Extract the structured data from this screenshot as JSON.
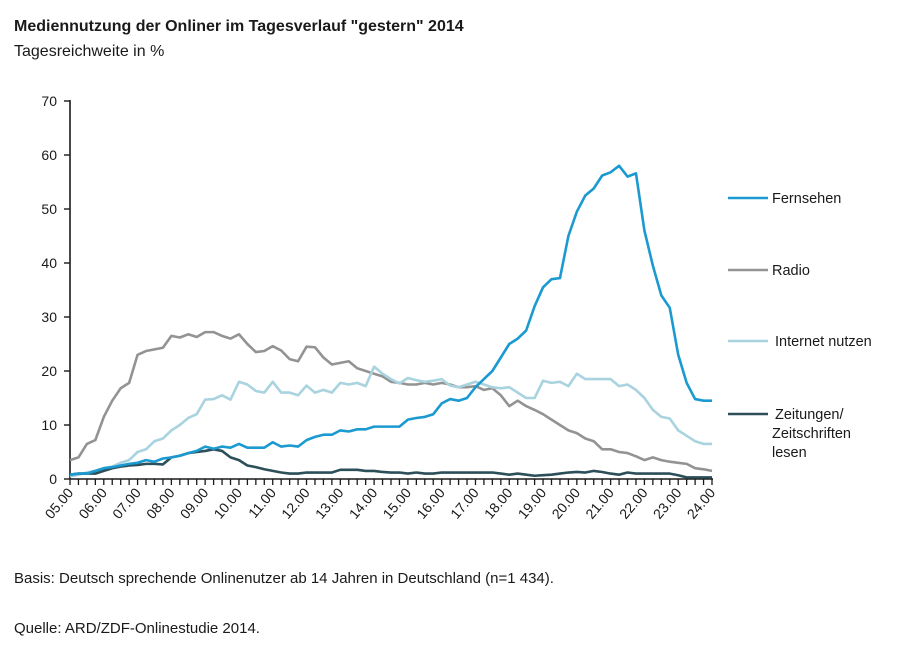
{
  "header": {
    "title": "Mediennutzung der Onliner im Tagesverlauf \"gestern\" 2014",
    "subtitle": "Tagesreichweite in %"
  },
  "footer": {
    "basis": "Basis: Deutsch sprechende Onlinenutzer ab 14 Jahren in Deutschland (n=1 434).",
    "source": "Quelle: ARD/ZDF-Onlinestudie 2014."
  },
  "chart_data": {
    "type": "line",
    "title": "Mediennutzung der Onliner im Tagesverlauf \"gestern\" 2014",
    "subtitle": "Tagesreichweite in %",
    "xlabel": "",
    "ylabel": "Tagesreichweite in %",
    "ylim": [
      0,
      70
    ],
    "yticks": [
      0,
      10,
      20,
      30,
      40,
      50,
      60,
      70
    ],
    "xlim": [
      5,
      24
    ],
    "xstep_hours": 0.25,
    "xtick_labels": [
      "05.00",
      "06.00",
      "07.00",
      "08.00",
      "09.00",
      "10.00",
      "11.00",
      "12.00",
      "13.00",
      "14.00",
      "15.00",
      "16.00",
      "17.00",
      "18.00",
      "19.00",
      "20.00",
      "21.00",
      "22.00",
      "23.00",
      "24.00"
    ],
    "grid": false,
    "legend_position": "right",
    "series": [
      {
        "name": "Fernsehen",
        "legend": [
          "Fernsehen"
        ],
        "color": "#1a9ad0",
        "values": [
          0.8,
          1.0,
          1.0,
          1.5,
          2.0,
          2.2,
          2.5,
          2.8,
          3.0,
          3.5,
          3.2,
          3.8,
          4.0,
          4.3,
          4.8,
          5.2,
          6.0,
          5.6,
          6.0,
          5.8,
          6.5,
          5.8,
          5.8,
          5.8,
          6.8,
          6.0,
          6.2,
          6.0,
          7.2,
          7.8,
          8.2,
          8.2,
          9.0,
          8.8,
          9.2,
          9.2,
          9.7,
          9.7,
          9.7,
          9.7,
          11.0,
          11.3,
          11.5,
          12.0,
          14.0,
          14.8,
          14.5,
          15.0,
          17.0,
          18.5,
          20.0,
          22.5,
          25.0,
          26.0,
          27.5,
          32.0,
          35.5,
          37.0,
          37.2,
          45.0,
          49.5,
          52.5,
          53.8,
          56.2,
          56.8,
          58.0,
          56.0,
          56.6,
          46.0,
          39.5,
          34.0,
          31.7,
          23.0,
          17.8,
          14.8,
          14.5,
          14.5
        ]
      },
      {
        "name": "Radio",
        "legend": [
          "Radio"
        ],
        "color": "#939393",
        "values": [
          3.5,
          4.0,
          6.5,
          7.2,
          11.5,
          14.5,
          16.8,
          17.8,
          23.0,
          23.7,
          24.0,
          24.3,
          26.5,
          26.2,
          26.8,
          26.3,
          27.2,
          27.2,
          26.5,
          26.0,
          26.8,
          25.0,
          23.5,
          23.7,
          24.6,
          23.8,
          22.2,
          21.8,
          24.5,
          24.4,
          22.5,
          21.2,
          21.5,
          21.8,
          20.5,
          20.0,
          19.5,
          19.0,
          18.0,
          17.8,
          17.5,
          17.5,
          17.8,
          17.5,
          17.8,
          17.5,
          17.0,
          17.0,
          17.2,
          16.5,
          16.8,
          15.5,
          13.5,
          14.5,
          13.5,
          12.8,
          12.0,
          11.0,
          10.0,
          9.0,
          8.5,
          7.5,
          7.0,
          5.5,
          5.5,
          5.0,
          4.8,
          4.2,
          3.5,
          4.0,
          3.5,
          3.2,
          3.0,
          2.8,
          2.0,
          1.8,
          1.5
        ]
      },
      {
        "name": "Internet nutzen",
        "legend": [
          "Internet nutzen"
        ],
        "color": "#a8d3df",
        "values": [
          0.5,
          0.8,
          1.2,
          1.5,
          2.0,
          2.3,
          3.0,
          3.5,
          5.0,
          5.5,
          7.0,
          7.5,
          9.0,
          10.0,
          11.3,
          12.0,
          14.7,
          14.8,
          15.5,
          14.7,
          18.0,
          17.5,
          16.3,
          16.0,
          18.0,
          16.0,
          16.0,
          15.5,
          17.3,
          16.0,
          16.5,
          16.0,
          17.8,
          17.5,
          17.8,
          17.2,
          20.8,
          19.5,
          18.5,
          17.7,
          18.7,
          18.3,
          18.0,
          18.2,
          18.5,
          17.3,
          17.0,
          17.5,
          18.0,
          17.5,
          17.0,
          16.8,
          17.0,
          16.0,
          15.0,
          15.0,
          18.2,
          17.8,
          18.0,
          17.2,
          19.5,
          18.5,
          18.5,
          18.5,
          18.5,
          17.2,
          17.5,
          16.5,
          15.0,
          12.8,
          11.5,
          11.2,
          9.0,
          8.0,
          7.0,
          6.5,
          6.5
        ]
      },
      {
        "name": "Zeitungen/Zeitschriften lesen",
        "legend": [
          "Zeitungen/",
          "Zeitschriften",
          "lesen"
        ],
        "color": "#2d4f5a",
        "values": [
          0.8,
          1.0,
          1.0,
          1.0,
          1.5,
          2.0,
          2.3,
          2.5,
          2.6,
          2.8,
          2.8,
          2.7,
          4.0,
          4.3,
          4.8,
          5.0,
          5.2,
          5.5,
          5.2,
          4.0,
          3.5,
          2.5,
          2.2,
          1.8,
          1.5,
          1.2,
          1.0,
          1.0,
          1.2,
          1.2,
          1.2,
          1.2,
          1.7,
          1.7,
          1.7,
          1.5,
          1.5,
          1.3,
          1.2,
          1.2,
          1.0,
          1.2,
          1.0,
          1.0,
          1.2,
          1.2,
          1.2,
          1.2,
          1.2,
          1.2,
          1.2,
          1.0,
          0.8,
          1.0,
          0.8,
          0.6,
          0.7,
          0.8,
          1.0,
          1.2,
          1.3,
          1.2,
          1.5,
          1.3,
          1.0,
          0.8,
          1.2,
          1.0,
          1.0,
          1.0,
          1.0,
          1.0,
          0.7,
          0.3,
          0.3,
          0.3,
          0.3
        ]
      }
    ]
  }
}
